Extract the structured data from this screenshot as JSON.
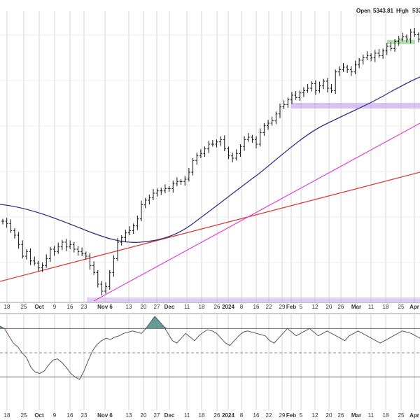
{
  "header": {
    "open_label": "Open",
    "open_value": "5343.81",
    "high_label": "High",
    "high_value": "537"
  },
  "colors": {
    "background": "#ffffff",
    "grid": "#d5d5d5",
    "price_bar": "#111111",
    "ma_50": "#33338a",
    "ma_200": "#d9403a",
    "trendline": "#e040d0",
    "zone_fill": "#c8a8f0",
    "zone_green": "#8fd68f",
    "rsi_line": "#555566",
    "rsi_fill_high": "#4a8a80",
    "rsi_band": "#666666"
  },
  "chart_data": [
    {
      "type": "line",
      "title": "",
      "description_series": "daily OHLC bars",
      "x_ticks": [
        "18",
        "25",
        "Oct",
        "9",
        "16",
        "23",
        "Nov 6",
        "13",
        "20",
        "27",
        "Dec",
        "11",
        "18",
        "26",
        "2024",
        "8",
        "16",
        "22",
        "29",
        "Feb",
        "5",
        "12",
        "20",
        "26",
        "Mar",
        "11",
        "18",
        "25",
        "Apr"
      ],
      "bold_ticks": [
        "Oct",
        "Nov",
        "Dec",
        "2024",
        "Feb",
        "Mar",
        "Apr"
      ],
      "ylim": [
        4100,
        5300
      ],
      "grid": true,
      "bars_close": [
        4430,
        4420,
        4390,
        4370,
        4330,
        4280,
        4300,
        4260,
        4250,
        4230,
        4240,
        4270,
        4310,
        4300,
        4320,
        4340,
        4320,
        4330,
        4310,
        4300,
        4290,
        4280,
        4240,
        4210,
        4160,
        4130,
        4150,
        4210,
        4270,
        4340,
        4360,
        4380,
        4390,
        4410,
        4440,
        4500,
        4520,
        4530,
        4550,
        4560,
        4560,
        4570,
        4570,
        4590,
        4600,
        4600,
        4610,
        4640,
        4690,
        4710,
        4720,
        4740,
        4760,
        4760,
        4770,
        4780,
        4740,
        4710,
        4700,
        4720,
        4750,
        4780,
        4790,
        4780,
        4760,
        4810,
        4840,
        4850,
        4860,
        4890,
        4920,
        4930,
        4950,
        4970,
        4960,
        4980,
        4990,
        5000,
        5020,
        4990,
        5010,
        5030,
        5000,
        4990,
        5070,
        5080,
        5090,
        5080,
        5070,
        5100,
        5120,
        5130,
        5140,
        5130,
        5150,
        5140,
        5160,
        5180,
        5170,
        5200,
        5210,
        5220,
        5210,
        5240,
        5230,
        5210
      ]
    },
    {
      "type": "line",
      "series": [
        {
          "values": [
            72,
            70,
            64,
            58,
            55,
            50,
            46,
            38,
            34,
            33,
            35,
            40,
            44,
            45,
            42,
            38,
            33,
            30,
            28,
            35,
            44,
            52,
            57,
            60,
            62,
            61,
            63,
            64,
            66,
            67,
            68,
            67,
            66,
            70,
            75,
            80,
            76,
            72,
            66,
            60,
            58,
            62,
            66,
            63,
            60,
            64,
            67,
            69,
            68,
            66,
            62,
            58,
            56,
            60,
            64,
            67,
            68,
            67,
            66,
            65,
            64,
            60,
            58,
            62,
            66,
            70,
            67,
            64,
            66,
            68,
            70,
            67,
            64,
            66,
            68,
            66,
            64,
            62,
            60,
            64,
            66,
            68,
            66,
            64,
            62,
            60,
            58,
            60,
            62,
            64,
            66,
            68,
            67,
            66,
            64,
            62
          ]
        }
      ],
      "ylim": [
        20,
        80
      ],
      "grid": true
    }
  ]
}
